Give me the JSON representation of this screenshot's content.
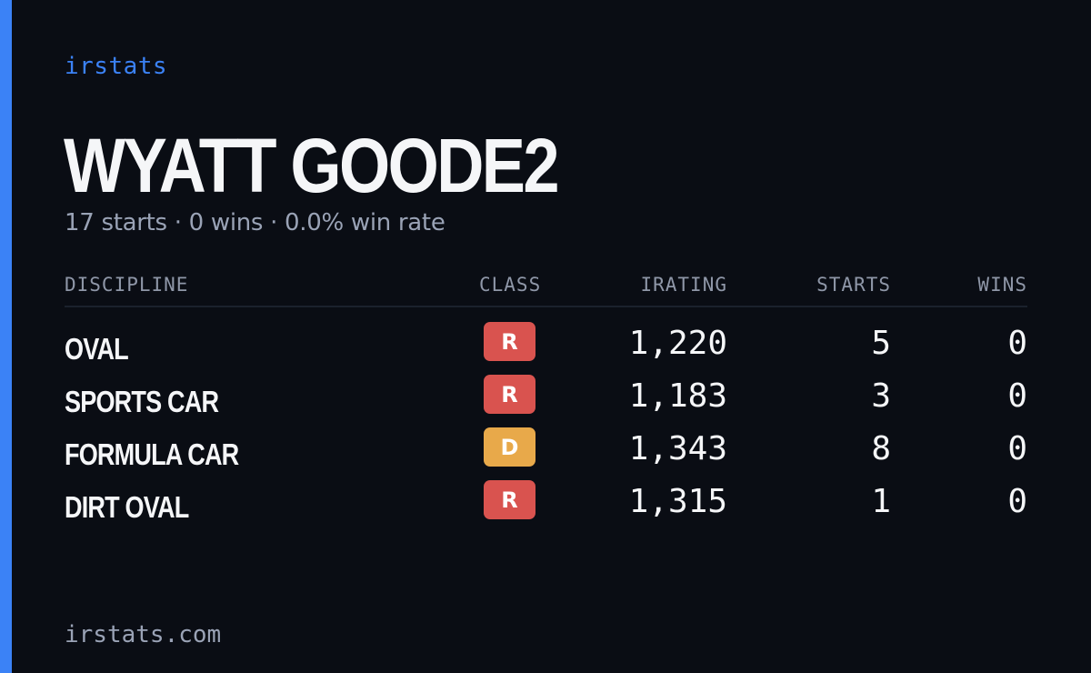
{
  "brand": "irstats",
  "driver": {
    "name": "WYATT GOODE2",
    "summary": "17 starts · 0 wins · 0.0% win rate"
  },
  "table": {
    "headers": {
      "discipline": "DISCIPLINE",
      "class": "CLASS",
      "irating": "IRATING",
      "starts": "STARTS",
      "wins": "WINS"
    },
    "rows": [
      {
        "discipline": "OVAL",
        "class": "R",
        "class_color": "#d9534f",
        "irating": "1,220",
        "starts": "5",
        "wins": "0"
      },
      {
        "discipline": "SPORTS CAR",
        "class": "R",
        "class_color": "#d9534f",
        "irating": "1,183",
        "starts": "3",
        "wins": "0"
      },
      {
        "discipline": "FORMULA CAR",
        "class": "D",
        "class_color": "#e8a94a",
        "irating": "1,343",
        "starts": "8",
        "wins": "0"
      },
      {
        "discipline": "DIRT OVAL",
        "class": "R",
        "class_color": "#d9534f",
        "irating": "1,315",
        "starts": "1",
        "wins": "0"
      }
    ]
  },
  "footer": "irstats.com",
  "colors": {
    "background": "#0a0d14",
    "accent": "#3b82f6"
  }
}
